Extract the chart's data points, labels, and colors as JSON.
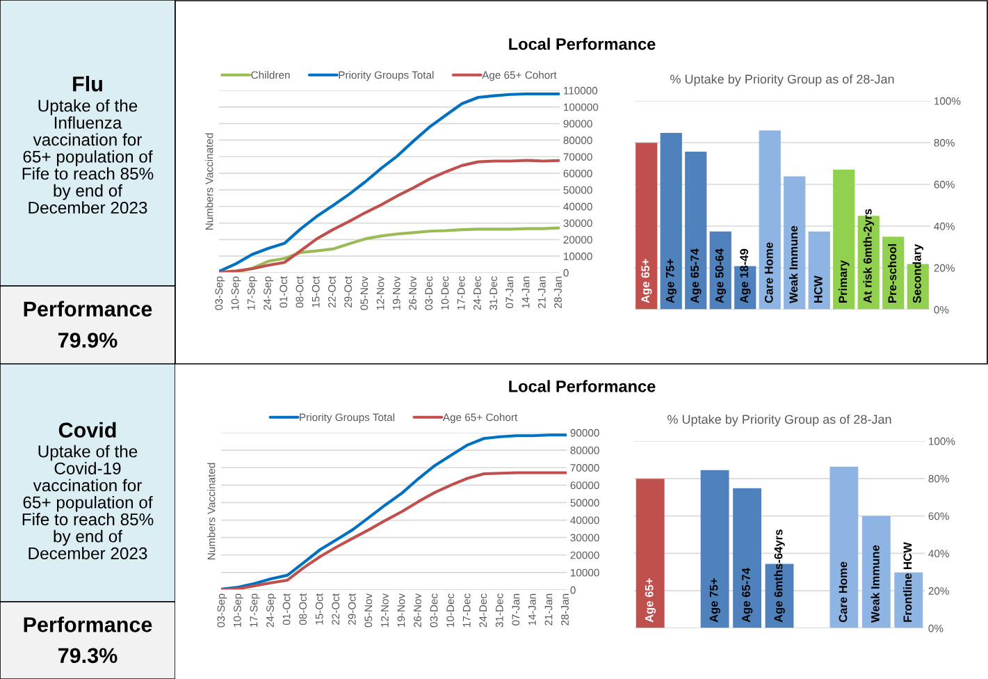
{
  "chart_data": [
    {
      "type": "other",
      "title": "Flu",
      "annotations": [
        "Uptake of the\nInfluenza\nvaccination for\n65+ population of\nFife to reach 85%\nby end of\nDecember 2023",
        "Performance",
        "79.9%"
      ]
    },
    {
      "type": "line",
      "title": "Local Performance",
      "ylabel": "Numbers Vaccinated",
      "categories": [
        "03-Sep",
        "10-Sep",
        "17-Sep",
        "24-Sep",
        "01-Oct",
        "08-Oct",
        "15-Oct",
        "22-Oct",
        "29-Oct",
        "05-Nov",
        "12-Nov",
        "19-Nov",
        "26-Nov",
        "03-Dec",
        "10-Dec",
        "17-Dec",
        "24-Dec",
        "31-Dec",
        "07-Jan",
        "14-Jan",
        "21-Jan",
        "28-Jan"
      ],
      "series": [
        {
          "name": "Children",
          "color": "#9bbb59",
          "values": [
            0,
            200,
            2700,
            6900,
            8600,
            12200,
            13200,
            14300,
            17400,
            20400,
            22200,
            23400,
            24200,
            25100,
            25400,
            26000,
            26300,
            26300,
            26300,
            26600,
            26600,
            27000
          ]
        },
        {
          "name": "Priority Groups Total",
          "color": "#0070c0",
          "values": [
            1000,
            5400,
            11000,
            14700,
            17700,
            26400,
            34000,
            40500,
            47300,
            54800,
            63000,
            70500,
            79500,
            88000,
            95100,
            102000,
            105800,
            106800,
            107600,
            107900,
            107900,
            107900
          ]
        },
        {
          "name": "Age 65+ Cohort",
          "color": "#c0504d",
          "values": [
            300,
            1000,
            2400,
            4500,
            6200,
            13200,
            20400,
            26000,
            30900,
            36200,
            41000,
            46400,
            51300,
            56600,
            60900,
            64700,
            66900,
            67400,
            67400,
            67800,
            67400,
            67700
          ]
        }
      ],
      "ylim": [
        0,
        110000
      ],
      "yticks": [
        0,
        10000,
        20000,
        30000,
        40000,
        50000,
        60000,
        70000,
        80000,
        90000,
        100000,
        110000
      ],
      "grid": "y",
      "legend": "top"
    },
    {
      "type": "bar",
      "title": "% Uptake by Priority Group as of 28-Jan",
      "categories": [
        "Age 65+",
        "Age 75+",
        "Age 65-74",
        "Age 50-64",
        "Age 18-49",
        "Care Home",
        "Weak Immune",
        "HCW",
        "Primary",
        "At risk 6mth-2yrs",
        "Pre-school",
        "Secondary"
      ],
      "values": [
        79.9,
        84.7,
        75.7,
        37.4,
        20.8,
        85.8,
        63.8,
        37.4,
        67.1,
        44.9,
        34.9,
        21.8
      ],
      "colors": [
        "#c0504d",
        "#4f81bd",
        "#4f81bd",
        "#4f81bd",
        "#4f81bd",
        "#8eb4e3",
        "#8eb4e3",
        "#8eb4e3",
        "#92d050",
        "#92d050",
        "#92d050",
        "#92d050"
      ],
      "ylim": [
        0,
        100
      ],
      "yticks": [
        {
          "value": 0,
          "label": "0%"
        },
        {
          "value": 20,
          "label": "20%"
        },
        {
          "value": 40,
          "label": "40%"
        },
        {
          "value": 60,
          "label": "60%"
        },
        {
          "value": 80,
          "label": "80%"
        },
        {
          "value": 100,
          "label": "100%"
        }
      ],
      "grid": "y",
      "tick_labels": "y"
    },
    {
      "type": "other",
      "title": "Covid",
      "annotations": [
        "Uptake of the\nCovid-19\nvaccination for\n65+ population of\nFife to reach 85%\nby end of\nDecember 2023",
        "Performance",
        "79.3%"
      ]
    },
    {
      "type": "line",
      "title": "Local Performance",
      "ylabel": "Numbers Vaccinated",
      "categories": [
        "03-Sep",
        "10-Sep",
        "17-Sep",
        "24-Sep",
        "01-Oct",
        "08-Oct",
        "15-Oct",
        "22-Oct",
        "29-Oct",
        "05-Nov",
        "12-Nov",
        "19-Nov",
        "26-Nov",
        "03-Dec",
        "10-Dec",
        "17-Dec",
        "24-Dec",
        "31-Dec",
        "07-Jan",
        "14-Jan",
        "21-Jan",
        "28-Jan"
      ],
      "series": [
        {
          "name": "Priority Groups Total",
          "color": "#0070c0",
          "values": [
            500,
            1600,
            3700,
            6400,
            8400,
            15700,
            23100,
            28800,
            34600,
            41700,
            48800,
            55500,
            63700,
            71200,
            77200,
            83000,
            86700,
            87700,
            88300,
            88300,
            88700,
            88700
          ]
        },
        {
          "name": "Age 65+ Cohort",
          "color": "#c0504d",
          "values": [
            200,
            700,
            2400,
            4100,
            5600,
            12800,
            19100,
            24600,
            29600,
            34600,
            39900,
            44900,
            50600,
            55800,
            60100,
            63900,
            66500,
            66800,
            67100,
            67100,
            67100,
            67100
          ]
        }
      ],
      "ylim": [
        0,
        90000
      ],
      "yticks": [
        0,
        10000,
        20000,
        30000,
        40000,
        50000,
        60000,
        70000,
        80000,
        90000
      ],
      "grid": "y",
      "legend": "top"
    },
    {
      "type": "bar",
      "title": "% Uptake by Priority Group as of 28-Jan",
      "categories": [
        "Age 65+",
        null,
        "Age 75+",
        "Age 65-74",
        "Age 6mths-64yrs",
        null,
        "Care Home",
        "Weak Immune",
        "Frontline HCW"
      ],
      "values": [
        79.8,
        null,
        84.5,
        74.8,
        34.4,
        null,
        86.3,
        59.9,
        29.8
      ],
      "colors": [
        "#c0504d",
        "#4f81bd",
        "#4f81bd",
        "#4f81bd",
        "#4f81bd",
        "#8eb4e3",
        "#8eb4e3",
        "#8eb4e3",
        "#8eb4e3"
      ],
      "ylim": [
        0,
        100
      ],
      "yticks": [
        {
          "value": 0,
          "label": "0%"
        },
        {
          "value": 20,
          "label": "20%"
        },
        {
          "value": 40,
          "label": "40%"
        },
        {
          "value": 60,
          "label": "60%"
        },
        {
          "value": 80,
          "label": "80%"
        },
        {
          "value": 100,
          "label": "100%"
        }
      ],
      "grid": "y",
      "tick_labels": "y"
    }
  ]
}
